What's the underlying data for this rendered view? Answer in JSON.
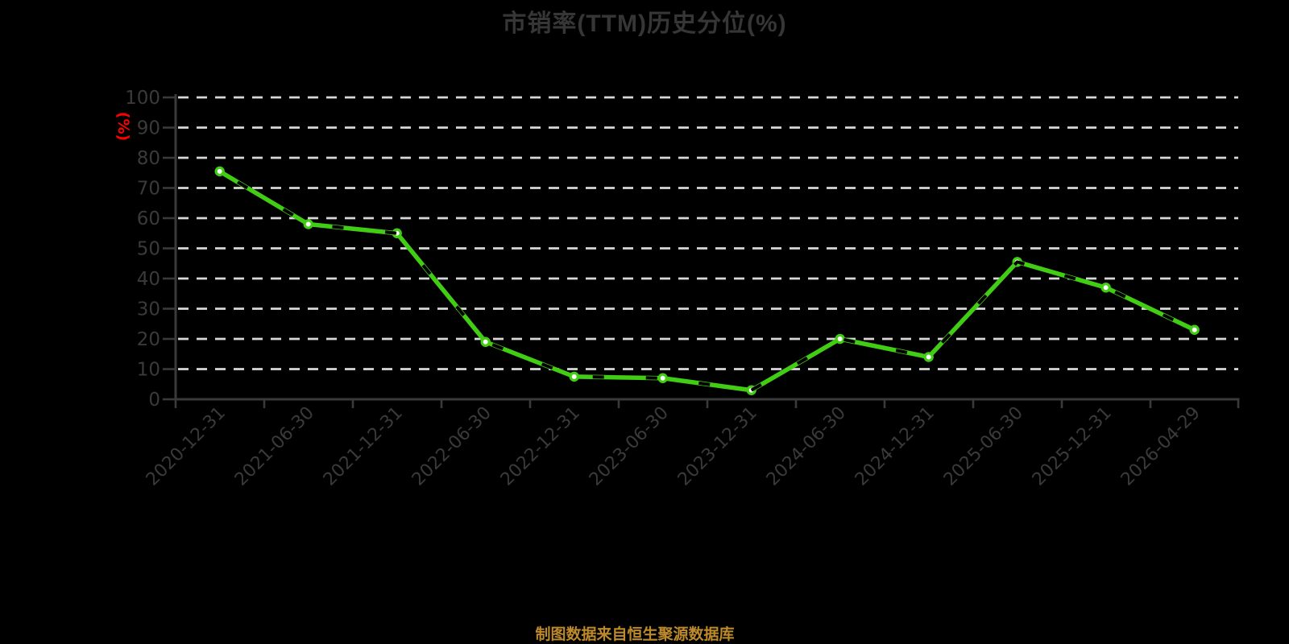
{
  "page": {
    "background": "#000000"
  },
  "header": {
    "title": "市销率(TTM)历史分位(%)"
  },
  "footer": {
    "source_note": "制图数据来自恒生聚源数据库"
  },
  "chart_data": {
    "type": "line",
    "title": "市销率(TTM)历史分位(%)",
    "ylabel": "(%)",
    "xlabel": "",
    "categories": [
      "2020-12-31",
      "2021-06-30",
      "2021-12-31",
      "2022-06-30",
      "2022-12-31",
      "2023-06-30",
      "2023-12-31",
      "2024-06-30",
      "2024-12-31",
      "2025-06-30",
      "2025-12-31",
      "2026-04-29"
    ],
    "series": [
      {
        "name": "市销率(TTM)历史分位",
        "values": [
          75.5,
          58,
          55,
          19,
          7.5,
          7,
          3,
          20,
          14,
          45.5,
          37,
          23
        ],
        "line_style": "solid green with black dashed overlay",
        "marker": "white circle with green ring"
      }
    ],
    "ylim": [
      0,
      100
    ],
    "yticks": [
      0,
      10,
      20,
      30,
      40,
      50,
      60,
      70,
      80,
      90,
      100
    ],
    "grid": "horizontal white dashed lines",
    "legend_position": "none",
    "x_label_rotation_deg": 45,
    "colors": {
      "background": "#000000",
      "line_green": "#41cd13",
      "marker_fill": "#ffffff",
      "dash_overlay": "#000000",
      "gridline": "#d8d8d8",
      "axis": "#3a3a3a",
      "tick_label": "#3a3a3a",
      "title_text": "#363636",
      "ylabel_red": "#ff0000",
      "source_gold": "#bd8a2b"
    }
  }
}
